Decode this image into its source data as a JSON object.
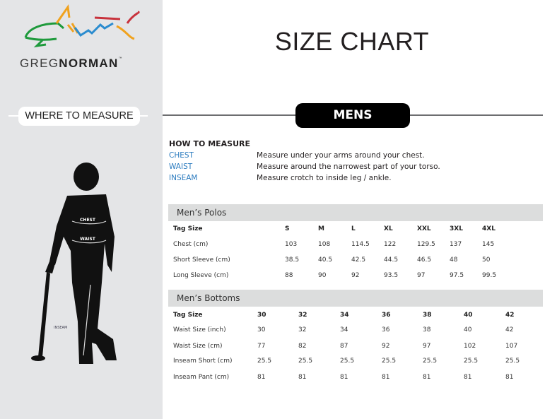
{
  "brand": {
    "name_light": "GREG",
    "name_bold": "NORMAN",
    "tm": "™",
    "colors": {
      "green": "#1e9a3c",
      "orange": "#f0a21e",
      "blue": "#2b8ccf",
      "red": "#c8323c"
    }
  },
  "sidebar": {
    "where_to_measure": "WHERE TO MEASURE",
    "figure_labels": {
      "chest": "CHEST",
      "waist": "WAIST",
      "inseam": "INSEAM"
    }
  },
  "header": {
    "title": "SIZE CHART",
    "section": "MENS"
  },
  "how_to": {
    "heading": "HOW TO MEASURE",
    "items": [
      {
        "key": "CHEST",
        "text": "Measure under your arms around your chest."
      },
      {
        "key": "WAIST",
        "text": "Measure around the narrowest part of your torso."
      },
      {
        "key": "INSEAM",
        "text": "Measure crotch to inside leg / ankle."
      }
    ]
  },
  "tables": [
    {
      "title": "Men’s Polos",
      "rows": [
        [
          "Tag Size",
          "S",
          "M",
          "L",
          "XL",
          "XXL",
          "3XL",
          "4XL"
        ],
        [
          "Chest (cm)",
          "103",
          "108",
          "114.5",
          "122",
          "129.5",
          "137",
          "145"
        ],
        [
          "Short Sleeve (cm)",
          "38.5",
          "40.5",
          "42.5",
          "44.5",
          "46.5",
          "48",
          "50"
        ],
        [
          "Long Sleeve (cm)",
          "88",
          "90",
          "92",
          "93.5",
          "97",
          "97.5",
          "99.5"
        ]
      ]
    },
    {
      "title": "Men’s Bottoms",
      "rows": [
        [
          "Tag Size",
          "30",
          "32",
          "34",
          "36",
          "38",
          "40",
          "42"
        ],
        [
          "Waist Size (inch)",
          "30",
          "32",
          "34",
          "36",
          "38",
          "40",
          "42"
        ],
        [
          "Waist Size (cm)",
          "77",
          "82",
          "87",
          "92",
          "97",
          "102",
          "107"
        ],
        [
          "Inseam Short (cm)",
          "25.5",
          "25.5",
          "25.5",
          "25.5",
          "25.5",
          "25.5",
          "25.5"
        ],
        [
          "Inseam Pant (cm)",
          "81",
          "81",
          "81",
          "81",
          "81",
          "81",
          "81"
        ]
      ]
    }
  ]
}
